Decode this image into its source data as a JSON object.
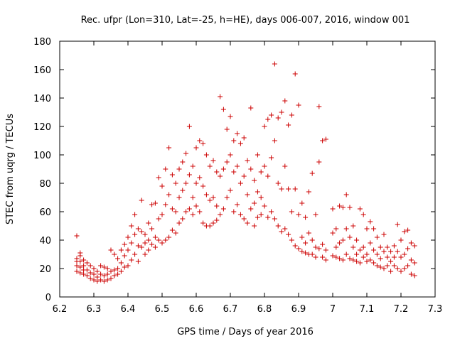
{
  "chart_data": {
    "type": "scatter",
    "title": "Rec. ufpr (Lon=310, Lat=-25, h=HE), days 006-007, 2016, window 001",
    "xlabel": "GPS time / Days of year 2016",
    "ylabel": "STEC from uqrg / TECUs",
    "xlim": [
      6.2,
      7.3
    ],
    "ylim": [
      0,
      180
    ],
    "x_ticks": [
      "6.2",
      "6.3",
      "6.4",
      "6.5",
      "6.6",
      "6.7",
      "6.8",
      "6.9",
      "7",
      "7.1",
      "7.2",
      "7.3"
    ],
    "y_ticks": [
      "0",
      "20",
      "40",
      "60",
      "80",
      "100",
      "120",
      "140",
      "160",
      "180"
    ],
    "grid": false,
    "marker": "plus",
    "color": "#cc0000",
    "series": [
      {
        "points": [
          [
            6.25,
            43
          ],
          [
            6.25,
            27
          ],
          [
            6.25,
            25
          ],
          [
            6.25,
            22
          ],
          [
            6.25,
            18
          ],
          [
            6.26,
            31
          ],
          [
            6.26,
            29
          ],
          [
            6.26,
            25
          ],
          [
            6.26,
            21
          ],
          [
            6.26,
            17
          ],
          [
            6.27,
            26
          ],
          [
            6.27,
            22
          ],
          [
            6.27,
            19
          ],
          [
            6.27,
            16
          ],
          [
            6.28,
            24
          ],
          [
            6.28,
            19
          ],
          [
            6.28,
            15
          ],
          [
            6.29,
            22
          ],
          [
            6.29,
            17
          ],
          [
            6.29,
            13
          ],
          [
            6.3,
            20
          ],
          [
            6.3,
            16
          ],
          [
            6.3,
            12
          ],
          [
            6.31,
            18
          ],
          [
            6.31,
            14
          ],
          [
            6.31,
            11
          ],
          [
            6.32,
            22
          ],
          [
            6.32,
            16
          ],
          [
            6.32,
            12
          ],
          [
            6.33,
            21
          ],
          [
            6.33,
            15
          ],
          [
            6.33,
            11
          ],
          [
            6.34,
            20
          ],
          [
            6.34,
            16
          ],
          [
            6.34,
            12
          ],
          [
            6.35,
            33
          ],
          [
            6.35,
            18
          ],
          [
            6.35,
            13
          ],
          [
            6.36,
            30
          ],
          [
            6.36,
            19
          ],
          [
            6.36,
            15
          ],
          [
            6.37,
            27
          ],
          [
            6.37,
            20
          ],
          [
            6.37,
            16
          ],
          [
            6.38,
            33
          ],
          [
            6.38,
            24
          ],
          [
            6.38,
            18
          ],
          [
            6.39,
            37
          ],
          [
            6.39,
            29
          ],
          [
            6.39,
            21
          ],
          [
            6.4,
            42
          ],
          [
            6.4,
            33
          ],
          [
            6.4,
            22
          ],
          [
            6.41,
            50
          ],
          [
            6.41,
            38
          ],
          [
            6.41,
            26
          ],
          [
            6.42,
            58
          ],
          [
            6.42,
            44
          ],
          [
            6.42,
            30
          ],
          [
            6.43,
            48
          ],
          [
            6.43,
            36
          ],
          [
            6.43,
            25
          ],
          [
            6.44,
            68
          ],
          [
            6.44,
            46
          ],
          [
            6.44,
            35
          ],
          [
            6.45,
            44
          ],
          [
            6.45,
            38
          ],
          [
            6.45,
            30
          ],
          [
            6.46,
            52
          ],
          [
            6.46,
            40
          ],
          [
            6.46,
            33
          ],
          [
            6.47,
            65
          ],
          [
            6.47,
            48
          ],
          [
            6.47,
            37
          ],
          [
            6.48,
            66
          ],
          [
            6.48,
            42
          ],
          [
            6.48,
            35
          ],
          [
            6.49,
            84
          ],
          [
            6.49,
            55
          ],
          [
            6.49,
            40
          ],
          [
            6.5,
            78
          ],
          [
            6.5,
            58
          ],
          [
            6.5,
            38
          ],
          [
            6.51,
            90
          ],
          [
            6.51,
            65
          ],
          [
            6.51,
            40
          ],
          [
            6.52,
            105
          ],
          [
            6.52,
            72
          ],
          [
            6.52,
            42
          ],
          [
            6.53,
            86
          ],
          [
            6.53,
            62
          ],
          [
            6.53,
            47
          ],
          [
            6.54,
            80
          ],
          [
            6.54,
            60
          ],
          [
            6.54,
            45
          ],
          [
            6.55,
            90
          ],
          [
            6.55,
            70
          ],
          [
            6.55,
            52
          ],
          [
            6.56,
            95
          ],
          [
            6.56,
            75
          ],
          [
            6.56,
            55
          ],
          [
            6.57,
            101
          ],
          [
            6.57,
            80
          ],
          [
            6.57,
            60
          ],
          [
            6.58,
            120
          ],
          [
            6.58,
            86
          ],
          [
            6.58,
            62
          ],
          [
            6.59,
            92
          ],
          [
            6.59,
            70
          ],
          [
            6.59,
            58
          ],
          [
            6.6,
            105
          ],
          [
            6.6,
            80
          ],
          [
            6.6,
            64
          ],
          [
            6.61,
            110
          ],
          [
            6.61,
            84
          ],
          [
            6.61,
            60
          ],
          [
            6.62,
            108
          ],
          [
            6.62,
            78
          ],
          [
            6.62,
            52
          ],
          [
            6.63,
            100
          ],
          [
            6.63,
            72
          ],
          [
            6.63,
            50
          ],
          [
            6.64,
            92
          ],
          [
            6.64,
            68
          ],
          [
            6.64,
            50
          ],
          [
            6.65,
            96
          ],
          [
            6.65,
            70
          ],
          [
            6.65,
            52
          ],
          [
            6.66,
            88
          ],
          [
            6.66,
            64
          ],
          [
            6.66,
            54
          ],
          [
            6.67,
            141
          ],
          [
            6.67,
            85
          ],
          [
            6.67,
            58
          ],
          [
            6.68,
            132
          ],
          [
            6.68,
            90
          ],
          [
            6.68,
            62
          ],
          [
            6.69,
            118
          ],
          [
            6.69,
            95
          ],
          [
            6.69,
            70
          ],
          [
            6.7,
            127
          ],
          [
            6.7,
            100
          ],
          [
            6.7,
            75
          ],
          [
            6.71,
            110
          ],
          [
            6.71,
            88
          ],
          [
            6.71,
            60
          ],
          [
            6.72,
            115
          ],
          [
            6.72,
            92
          ],
          [
            6.72,
            65
          ],
          [
            6.73,
            108
          ],
          [
            6.73,
            80
          ],
          [
            6.73,
            58
          ],
          [
            6.74,
            112
          ],
          [
            6.74,
            85
          ],
          [
            6.74,
            55
          ],
          [
            6.75,
            96
          ],
          [
            6.75,
            72
          ],
          [
            6.75,
            52
          ],
          [
            6.76,
            133
          ],
          [
            6.76,
            90
          ],
          [
            6.76,
            62
          ],
          [
            6.77,
            82
          ],
          [
            6.77,
            66
          ],
          [
            6.77,
            50
          ],
          [
            6.78,
            100
          ],
          [
            6.78,
            74
          ],
          [
            6.78,
            56
          ],
          [
            6.79,
            88
          ],
          [
            6.79,
            70
          ],
          [
            6.79,
            58
          ],
          [
            6.8,
            120
          ],
          [
            6.8,
            92
          ],
          [
            6.8,
            64
          ],
          [
            6.81,
            125
          ],
          [
            6.81,
            85
          ],
          [
            6.81,
            56
          ],
          [
            6.82,
            128
          ],
          [
            6.82,
            98
          ],
          [
            6.82,
            60
          ],
          [
            6.83,
            164
          ],
          [
            6.83,
            110
          ],
          [
            6.83,
            55
          ],
          [
            6.84,
            126
          ],
          [
            6.84,
            80
          ],
          [
            6.84,
            50
          ],
          [
            6.85,
            130
          ],
          [
            6.85,
            76
          ],
          [
            6.85,
            46
          ],
          [
            6.86,
            138
          ],
          [
            6.86,
            92
          ],
          [
            6.86,
            48
          ],
          [
            6.87,
            121
          ],
          [
            6.87,
            76
          ],
          [
            6.87,
            44
          ],
          [
            6.88,
            128
          ],
          [
            6.88,
            60
          ],
          [
            6.88,
            40
          ],
          [
            6.89,
            157
          ],
          [
            6.89,
            76
          ],
          [
            6.89,
            36
          ],
          [
            6.9,
            135
          ],
          [
            6.9,
            58
          ],
          [
            6.9,
            34
          ],
          [
            6.91,
            66
          ],
          [
            6.91,
            42
          ],
          [
            6.91,
            32
          ],
          [
            6.92,
            56
          ],
          [
            6.92,
            38
          ],
          [
            6.92,
            31
          ],
          [
            6.93,
            74
          ],
          [
            6.93,
            45
          ],
          [
            6.93,
            30
          ],
          [
            6.94,
            87
          ],
          [
            6.94,
            40
          ],
          [
            6.94,
            30
          ],
          [
            6.95,
            58
          ],
          [
            6.95,
            35
          ],
          [
            6.95,
            28
          ],
          [
            6.96,
            134
          ],
          [
            6.96,
            95
          ],
          [
            6.96,
            34
          ],
          [
            6.97,
            110
          ],
          [
            6.97,
            37
          ],
          [
            6.97,
            28
          ],
          [
            6.98,
            111
          ],
          [
            6.98,
            33
          ],
          [
            6.98,
            26
          ],
          [
            7.0,
            62
          ],
          [
            7.0,
            45
          ],
          [
            7.0,
            29
          ],
          [
            7.01,
            48
          ],
          [
            7.01,
            35
          ],
          [
            7.01,
            28
          ],
          [
            7.02,
            64
          ],
          [
            7.02,
            38
          ],
          [
            7.02,
            27
          ],
          [
            7.03,
            63
          ],
          [
            7.03,
            40
          ],
          [
            7.03,
            26
          ],
          [
            7.04,
            72
          ],
          [
            7.04,
            48
          ],
          [
            7.04,
            30
          ],
          [
            7.05,
            63
          ],
          [
            7.05,
            42
          ],
          [
            7.05,
            27
          ],
          [
            7.06,
            50
          ],
          [
            7.06,
            35
          ],
          [
            7.06,
            26
          ],
          [
            7.07,
            40
          ],
          [
            7.07,
            30
          ],
          [
            7.07,
            25
          ],
          [
            7.08,
            62
          ],
          [
            7.08,
            33
          ],
          [
            7.08,
            24
          ],
          [
            7.09,
            58
          ],
          [
            7.09,
            35
          ],
          [
            7.09,
            28
          ],
          [
            7.1,
            48
          ],
          [
            7.1,
            30
          ],
          [
            7.1,
            25
          ],
          [
            7.11,
            53
          ],
          [
            7.11,
            38
          ],
          [
            7.11,
            26
          ],
          [
            7.12,
            48
          ],
          [
            7.12,
            33
          ],
          [
            7.12,
            24
          ],
          [
            7.13,
            42
          ],
          [
            7.13,
            30
          ],
          [
            7.13,
            22
          ],
          [
            7.14,
            35
          ],
          [
            7.14,
            27
          ],
          [
            7.14,
            21
          ],
          [
            7.15,
            44
          ],
          [
            7.15,
            32
          ],
          [
            7.15,
            20
          ],
          [
            7.16,
            35
          ],
          [
            7.16,
            28
          ],
          [
            7.16,
            22
          ],
          [
            7.17,
            32
          ],
          [
            7.17,
            25
          ],
          [
            7.17,
            18
          ],
          [
            7.18,
            36
          ],
          [
            7.18,
            28
          ],
          [
            7.18,
            22
          ],
          [
            7.19,
            51
          ],
          [
            7.19,
            32
          ],
          [
            7.19,
            20
          ],
          [
            7.2,
            40
          ],
          [
            7.2,
            28
          ],
          [
            7.2,
            18
          ],
          [
            7.21,
            46
          ],
          [
            7.21,
            30
          ],
          [
            7.21,
            20
          ],
          [
            7.22,
            47
          ],
          [
            7.22,
            34
          ],
          [
            7.22,
            22
          ],
          [
            7.23,
            38
          ],
          [
            7.23,
            26
          ],
          [
            7.23,
            16
          ],
          [
            7.24,
            36
          ],
          [
            7.24,
            24
          ],
          [
            7.24,
            15
          ]
        ]
      }
    ]
  }
}
